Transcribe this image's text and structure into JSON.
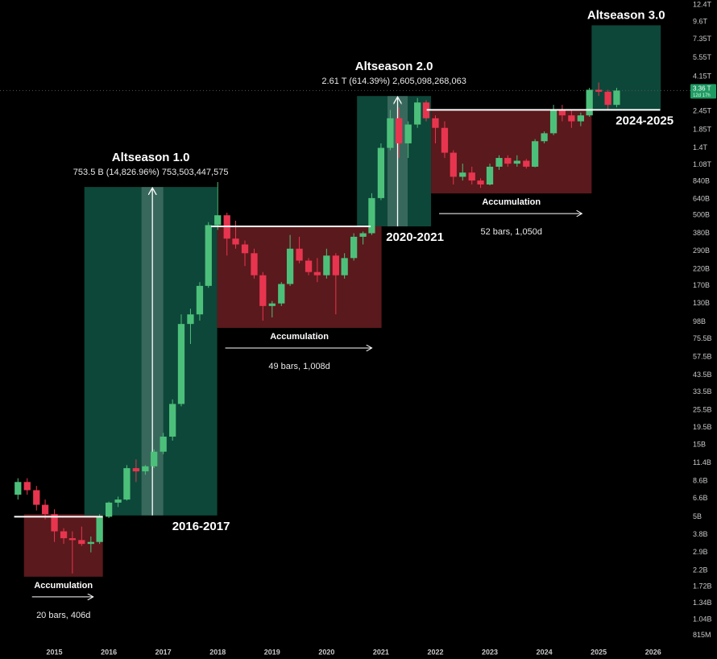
{
  "chart_data": {
    "type": "candlestick",
    "log_scale": true,
    "up_color": "#4cc07a",
    "down_color": "#e8354f",
    "xlim": [
      2014.0,
      2026.7
    ],
    "xticks": [
      2015,
      2016,
      2017,
      2018,
      2019,
      2020,
      2021,
      2022,
      2023,
      2024,
      2025,
      2026
    ],
    "ylim": [
      710000000.0,
      13400000000000.0
    ],
    "yticks": [
      {
        "value": 815000000.0,
        "label": "815M"
      },
      {
        "value": 1040000000.0,
        "label": "1.04B"
      },
      {
        "value": 1340000000.0,
        "label": "1.34B"
      },
      {
        "value": 1720000000.0,
        "label": "1.72B"
      },
      {
        "value": 2200000000.0,
        "label": "2.2B"
      },
      {
        "value": 2900000000.0,
        "label": "2.9B"
      },
      {
        "value": 3800000000.0,
        "label": "3.8B"
      },
      {
        "value": 5000000000.0,
        "label": "5B"
      },
      {
        "value": 6600000000.0,
        "label": "6.6B"
      },
      {
        "value": 8600000000.0,
        "label": "8.6B"
      },
      {
        "value": 11400000000.0,
        "label": "11.4B"
      },
      {
        "value": 15000000000.0,
        "label": "15B"
      },
      {
        "value": 19500000000.0,
        "label": "19.5B"
      },
      {
        "value": 25500000000.0,
        "label": "25.5B"
      },
      {
        "value": 33500000000.0,
        "label": "33.5B"
      },
      {
        "value": 43500000000.0,
        "label": "43.5B"
      },
      {
        "value": 57500000000.0,
        "label": "57.5B"
      },
      {
        "value": 75500000000.0,
        "label": "75.5B"
      },
      {
        "value": 98000000000.0,
        "label": "98B"
      },
      {
        "value": 130000000000.0,
        "label": "130B"
      },
      {
        "value": 170000000000.0,
        "label": "170B"
      },
      {
        "value": 220000000000.0,
        "label": "220B"
      },
      {
        "value": 290000000000.0,
        "label": "290B"
      },
      {
        "value": 380000000000.0,
        "label": "380B"
      },
      {
        "value": 500000000000.0,
        "label": "500B"
      },
      {
        "value": 640000000000.0,
        "label": "640B"
      },
      {
        "value": 840000000000.0,
        "label": "840B"
      },
      {
        "value": 1080000000000.0,
        "label": "1.08T"
      },
      {
        "value": 1400000000000.0,
        "label": "1.4T"
      },
      {
        "value": 1850000000000.0,
        "label": "1.85T"
      },
      {
        "value": 2450000000000.0,
        "label": "2.45T"
      },
      {
        "value": 4150000000000.0,
        "label": "4.15T"
      },
      {
        "value": 5550000000000.0,
        "label": "5.55T"
      },
      {
        "value": 7350000000000.0,
        "label": "7.35T"
      },
      {
        "value": 9600000000000.0,
        "label": "9.6T"
      },
      {
        "value": 12400000000000.0,
        "label": "12.4T"
      }
    ],
    "x": [
      2014.33,
      2014.5,
      2014.67,
      2014.83,
      2015,
      2015.17,
      2015.33,
      2015.5,
      2015.67,
      2015.83,
      2016,
      2016.17,
      2016.33,
      2016.5,
      2016.67,
      2016.83,
      2017,
      2017.17,
      2017.33,
      2017.5,
      2017.67,
      2017.83,
      2018,
      2018.17,
      2018.33,
      2018.5,
      2018.67,
      2018.83,
      2019,
      2019.17,
      2019.33,
      2019.5,
      2019.67,
      2019.83,
      2020,
      2020.17,
      2020.33,
      2020.5,
      2020.67,
      2020.83,
      2021,
      2021.17,
      2021.33,
      2021.5,
      2021.67,
      2021.83,
      2022,
      2022.17,
      2022.33,
      2022.5,
      2022.67,
      2022.83,
      2023,
      2023.17,
      2023.33,
      2023.5,
      2023.67,
      2023.83,
      2024,
      2024.17,
      2024.33,
      2024.5,
      2024.67,
      2024.83,
      2025,
      2025.17,
      2025.33
    ],
    "open": [
      7000000000.0,
      8500000000.0,
      7500000000.0,
      6000000000.0,
      5200000000.0,
      4000000000.0,
      3600000000.0,
      3500000000.0,
      3300000000.0,
      3400000000.0,
      5000000000.0,
      6200000000.0,
      6500000000.0,
      10500000000.0,
      10000000000.0,
      10800000000.0,
      13500000000.0,
      17000000000.0,
      28000000000.0,
      95000000000.0,
      110000000000.0,
      170000000000.0,
      430000000000.0,
      500000000000.0,
      350000000000.0,
      320000000000.0,
      280000000000.0,
      200000000000.0,
      125000000000.0,
      130000000000.0,
      175000000000.0,
      300000000000.0,
      250000000000.0,
      210000000000.0,
      200000000000.0,
      270000000000.0,
      200000000000.0,
      260000000000.0,
      360000000000.0,
      380000000000.0,
      650000000000.0,
      1400000000000.0,
      2200000000000.0,
      1500000000000.0,
      2000000000000.0,
      2800000000000.0,
      2200000000000.0,
      1900000000000.0,
      1300000000000.0,
      900000000000.0,
      960000000000.0,
      850000000000.0,
      800000000000.0,
      1050000000000.0,
      1200000000000.0,
      1100000000000.0,
      1150000000000.0,
      1050000000000.0,
      1550000000000.0,
      1750000000000.0,
      2500000000000.0,
      2300000000000.0,
      2100000000000.0,
      2300000000000.0,
      3400000000000.0,
      3300000000000.0,
      2700000000000.0
    ],
    "high": [
      9000000000.0,
      9000000000.0,
      8000000000.0,
      6500000000.0,
      5600000000.0,
      4200000000.0,
      4000000000.0,
      4300000000.0,
      3700000000.0,
      5200000000.0,
      6300000000.0,
      6800000000.0,
      11000000000.0,
      12000000000.0,
      11000000000.0,
      14000000000.0,
      18000000000.0,
      30000000000.0,
      110000000000.0,
      120000000000.0,
      180000000000.0,
      450000000000.0,
      830000000000.0,
      520000000000.0,
      460000000000.0,
      340000000000.0,
      300000000000.0,
      210000000000.0,
      135000000000.0,
      180000000000.0,
      370000000000.0,
      360000000000.0,
      260000000000.0,
      260000000000.0,
      300000000000.0,
      280000000000.0,
      280000000000.0,
      380000000000.0,
      390000000000.0,
      700000000000.0,
      1500000000000.0,
      2500000000000.0,
      2600000000000.0,
      2100000000000.0,
      3000000000000.0,
      2900000000000.0,
      2300000000000.0,
      2100000000000.0,
      1350000000000.0,
      1100000000000.0,
      1050000000000.0,
      880000000000.0,
      1100000000000.0,
      1250000000000.0,
      1250000000000.0,
      1250000000000.0,
      1180000000000.0,
      1600000000000.0,
      1800000000000.0,
      2700000000000.0,
      2700000000000.0,
      2500000000000.0,
      2400000000000.0,
      3500000000000.0,
      3800000000000.0,
      3400000000000.0,
      3500000000000.0
    ],
    "low": [
      6500000000.0,
      7000000000.0,
      5500000000.0,
      4800000000.0,
      3400000000.0,
      3300000000.0,
      2100000000.0,
      3200000000.0,
      2900000000.0,
      3300000000.0,
      4900000000.0,
      5800000000.0,
      6400000000.0,
      8500000000.0,
      9500000000.0,
      10500000000.0,
      13000000000.0,
      16000000000.0,
      27000000000.0,
      70000000000.0,
      100000000000.0,
      165000000000.0,
      400000000000.0,
      270000000000.0,
      300000000000.0,
      230000000000.0,
      190000000000.0,
      100000000000.0,
      105000000000.0,
      125000000000.0,
      170000000000.0,
      240000000000.0,
      200000000000.0,
      180000000000.0,
      190000000000.0,
      110000000000.0,
      190000000000.0,
      250000000000.0,
      320000000000.0,
      370000000000.0,
      630000000000.0,
      1350000000000.0,
      1200000000000.0,
      1200000000000.0,
      1900000000000.0,
      2100000000000.0,
      1500000000000.0,
      1200000000000.0,
      800000000000.0,
      850000000000.0,
      800000000000.0,
      760000000000.0,
      790000000000.0,
      1000000000000.0,
      1050000000000.0,
      1050000000000.0,
      1020000000000.0,
      1040000000000.0,
      1500000000000.0,
      1700000000000.0,
      2100000000000.0,
      1900000000000.0,
      1950000000000.0,
      2250000000000.0,
      3100000000000.0,
      2500000000000.0,
      2600000000000.0
    ],
    "close": [
      8500000000.0,
      7500000000.0,
      6000000000.0,
      5200000000.0,
      4000000000.0,
      3600000000.0,
      3500000000.0,
      3300000000.0,
      3400000000.0,
      5000000000.0,
      6200000000.0,
      6500000000.0,
      10500000000.0,
      10000000000.0,
      10800000000.0,
      13500000000.0,
      17000000000.0,
      28000000000.0,
      95000000000.0,
      110000000000.0,
      170000000000.0,
      430000000000.0,
      500000000000.0,
      350000000000.0,
      320000000000.0,
      280000000000.0,
      200000000000.0,
      125000000000.0,
      130000000000.0,
      175000000000.0,
      300000000000.0,
      250000000000.0,
      210000000000.0,
      200000000000.0,
      270000000000.0,
      200000000000.0,
      260000000000.0,
      360000000000.0,
      380000000000.0,
      650000000000.0,
      1400000000000.0,
      2200000000000.0,
      1500000000000.0,
      2000000000000.0,
      2800000000000.0,
      2200000000000.0,
      1900000000000.0,
      1300000000000.0,
      900000000000.0,
      960000000000.0,
      850000000000.0,
      800000000000.0,
      1050000000000.0,
      1200000000000.0,
      1100000000000.0,
      1150000000000.0,
      1050000000000.0,
      1550000000000.0,
      1750000000000.0,
      2500000000000.0,
      2300000000000.0,
      2100000000000.0,
      2300000000000.0,
      3400000000000.0,
      3300000000000.0,
      2700000000000.0,
      3360000000000.0
    ],
    "zones": [
      {
        "kind": "accumulation",
        "color": "#6a1d21",
        "x": [
          2014.44,
          2015.89
        ],
        "y": [
          2000000000.0,
          5200000000.0
        ],
        "label": "Accumulation",
        "note": "20 bars, 406d"
      },
      {
        "kind": "altseason",
        "color": "#0f5443",
        "x": [
          2015.55,
          2017.99
        ],
        "y": [
          5100000000.0,
          770000000000.0
        ],
        "label": "Altseason 1.0",
        "note": "753.5 B (14,826.96%) 753,503,447,575",
        "period": "2016-2017",
        "measure": [
          2016.6,
          2017.0
        ]
      },
      {
        "kind": "accumulation",
        "color": "#6a1d21",
        "x": [
          2017.99,
          2021.01
        ],
        "y": [
          89500000000.0,
          422000000000.0
        ],
        "label": "Accumulation",
        "note": "49 bars, 1,008d"
      },
      {
        "kind": "altseason",
        "color": "#0f5443",
        "x": [
          2020.56,
          2021.92
        ],
        "y": [
          422000000000.0,
          3090000000000.0
        ],
        "label": "Altseason 2.0",
        "note": "2.61 T (614.39%) 2,605,098,268,063",
        "period": "2020-2021",
        "measure": [
          2021.12,
          2021.49
        ]
      },
      {
        "kind": "accumulation",
        "color": "#6a1d21",
        "x": [
          2021.92,
          2024.87
        ],
        "y": [
          698000000000.0,
          2500000000000.0
        ],
        "label": "Accumulation",
        "note": "52 bars, 1,050d"
      },
      {
        "kind": "altseason",
        "color": "#0f5443",
        "x": [
          2024.87,
          2026.14
        ],
        "y": [
          2500000000000.0,
          9100000000000.0
        ],
        "label": "Altseason 3.0",
        "period": "2024-2025"
      }
    ],
    "levels": [
      {
        "value": 5000000000.0,
        "x": [
          2014.26,
          2015.89
        ]
      },
      {
        "value": 422000000000.0,
        "x": [
          2017.88,
          2020.81
        ]
      },
      {
        "value": 2500000000000.0,
        "x": [
          2021.84,
          2026.13
        ]
      }
    ],
    "last_price": {
      "value": 3360000000000.0,
      "label": "3.36 T",
      "countdown": "12d 17h",
      "color": "#1f9a63"
    }
  }
}
